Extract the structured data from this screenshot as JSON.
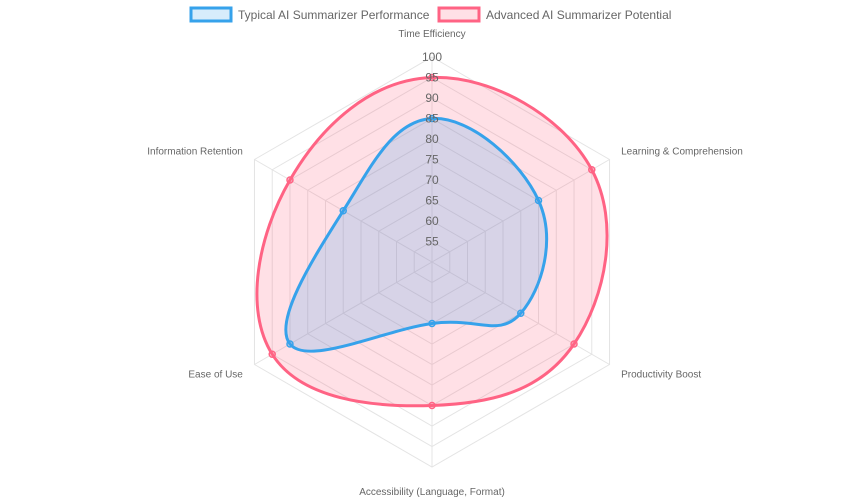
{
  "chart_data": {
    "type": "radar",
    "title": "",
    "axes": [
      "Time Efficiency",
      "Learning & Comprehension",
      "Productivity Boost",
      "Accessibility (Language, Format)",
      "Ease of Use",
      "Information Retention"
    ],
    "r_range": [
      50,
      100
    ],
    "ticks": [
      55,
      60,
      65,
      70,
      75,
      80,
      85,
      90,
      95,
      100
    ],
    "grid": true,
    "legend_position": "top",
    "series": [
      {
        "name": "Typical AI Summarizer Performance",
        "values": [
          85,
          80,
          75,
          65,
          90,
          75
        ],
        "border_color": "#36a2eb",
        "fill_color": "rgba(54,162,235,0.2)"
      },
      {
        "name": "Advanced AI Summarizer Potential",
        "values": [
          95,
          95,
          90,
          85,
          95,
          90
        ],
        "border_color": "#ff6384",
        "fill_color": "rgba(255,99,132,0.2)"
      }
    ]
  }
}
